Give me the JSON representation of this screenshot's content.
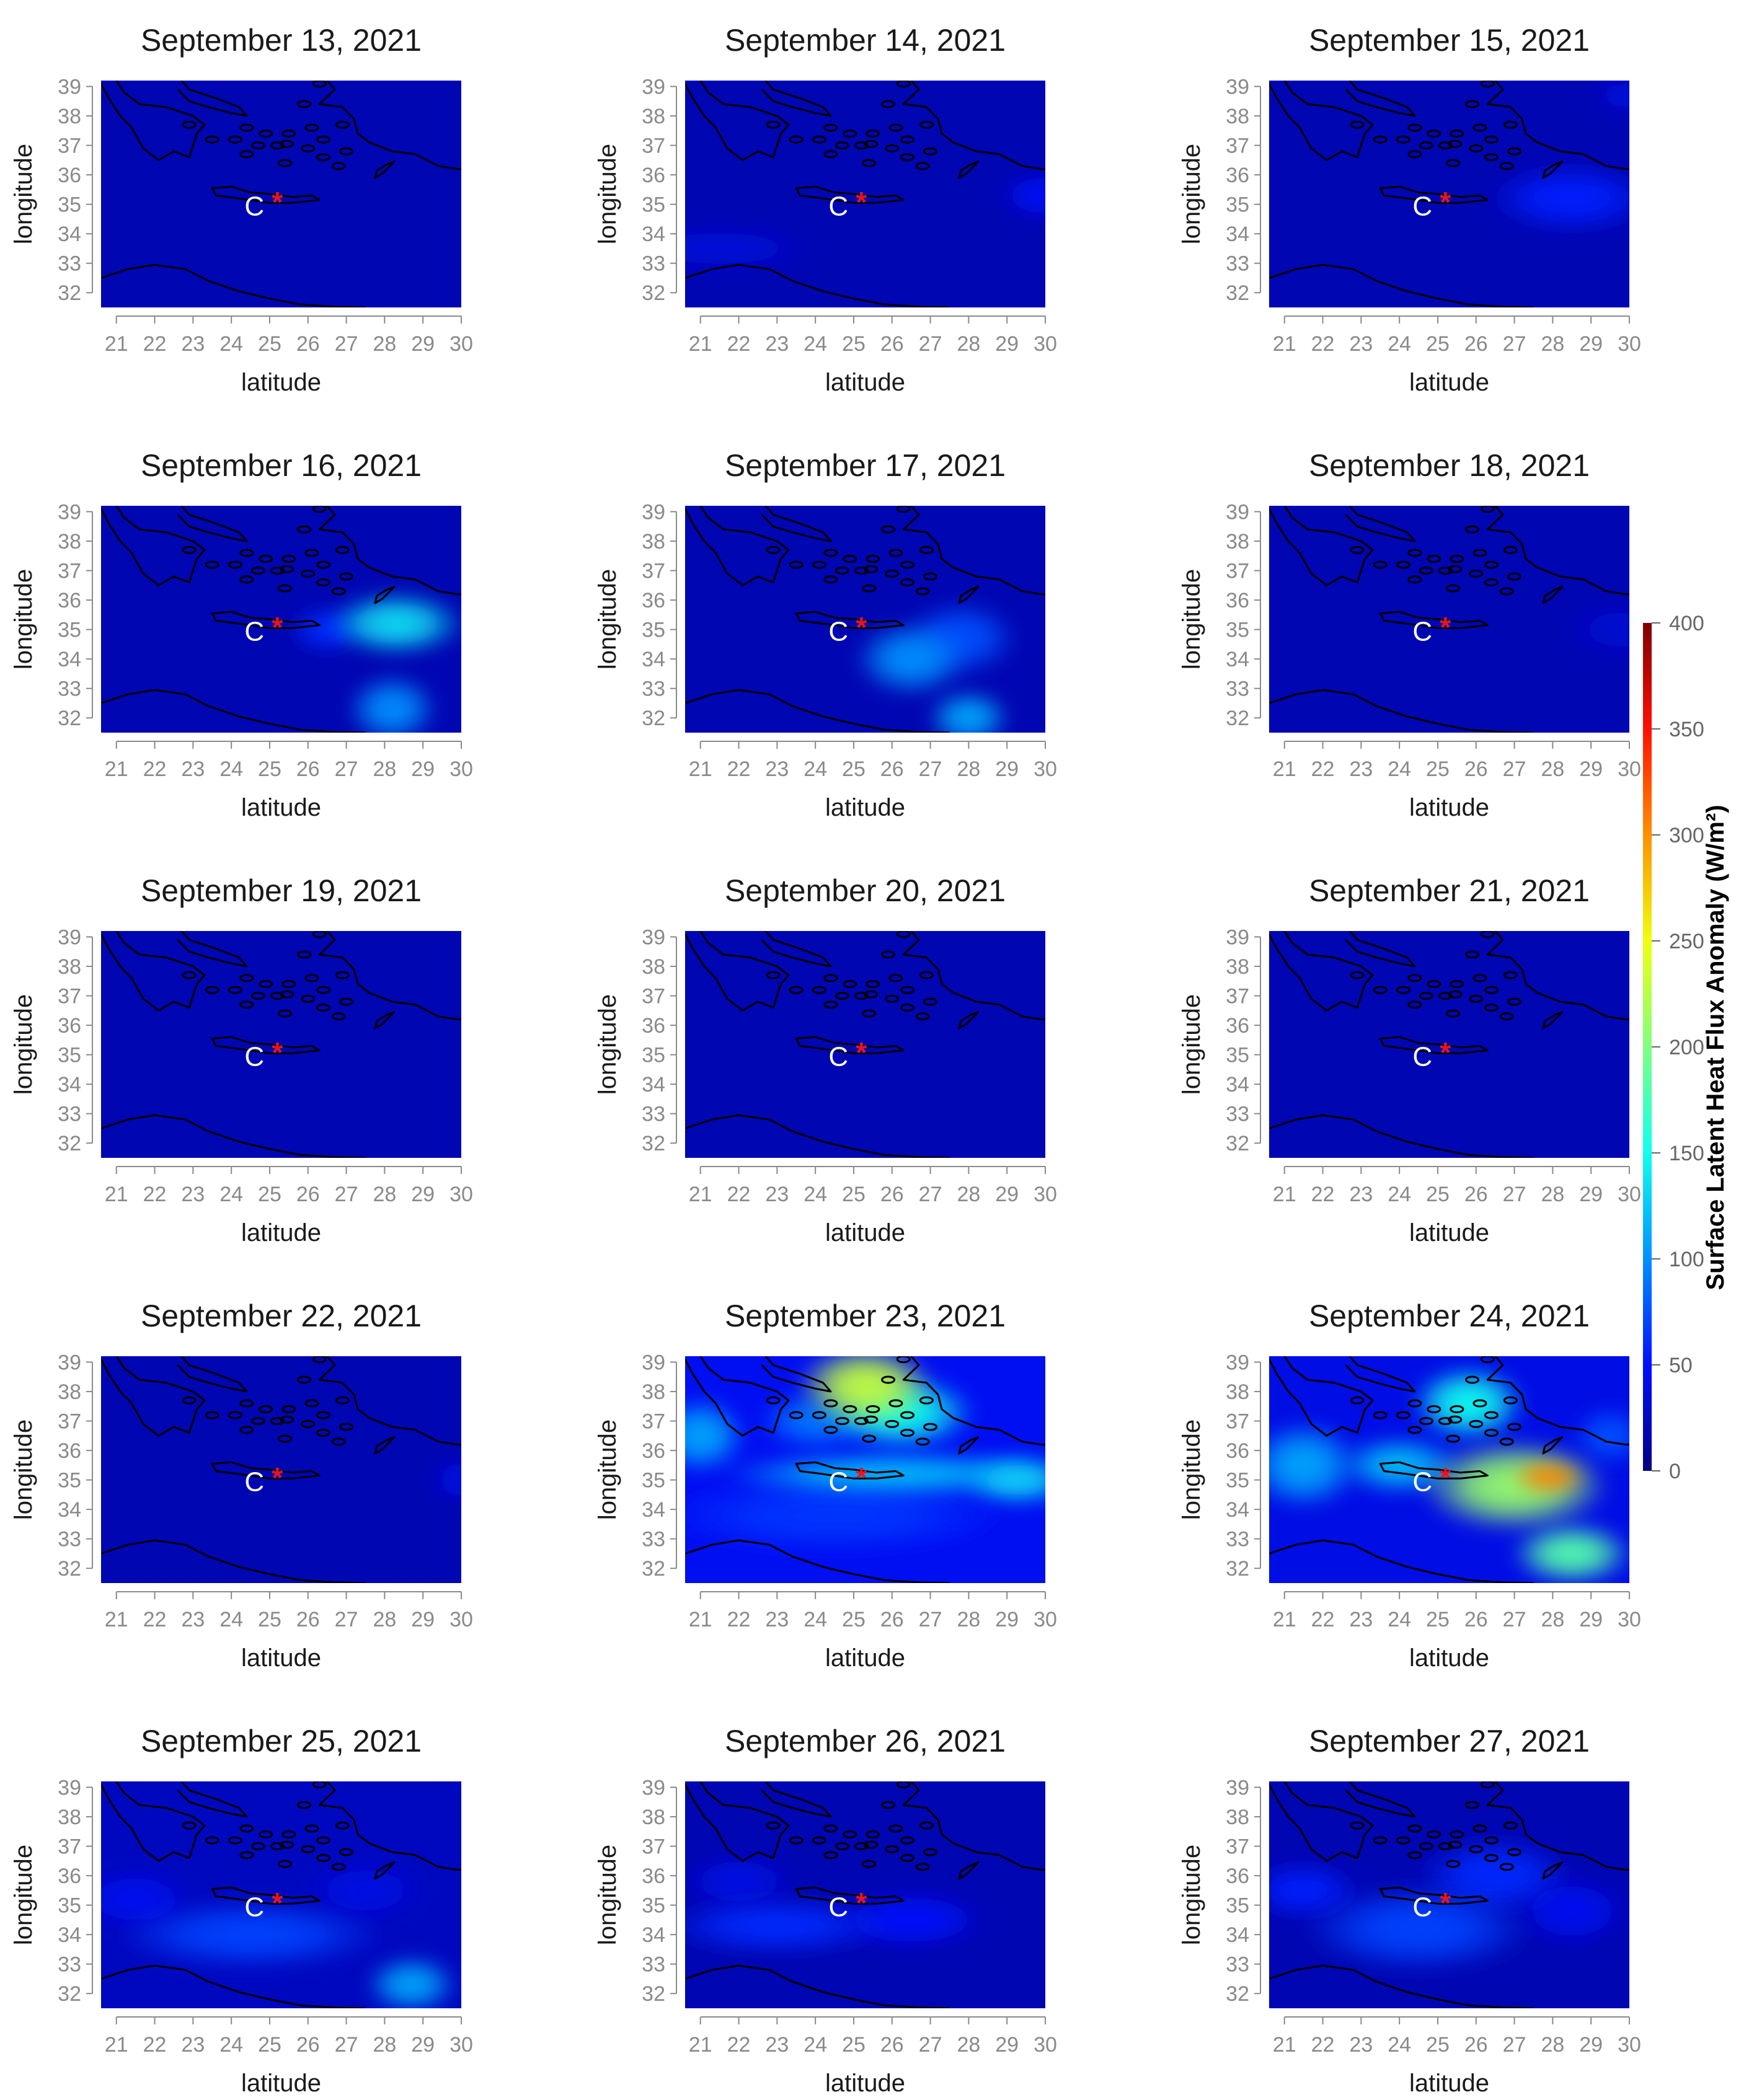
{
  "chart_data": {
    "type": "heatmap",
    "xlabel": "latitude",
    "ylabel": "longitude",
    "x_ticks": [
      21,
      22,
      23,
      24,
      25,
      26,
      27,
      28,
      29,
      30
    ],
    "y_ticks": [
      32,
      33,
      34,
      35,
      36,
      37,
      38,
      39
    ],
    "xlim": [
      20.6,
      30
    ],
    "ylim": [
      31.5,
      39.2
    ],
    "markers": {
      "epicenter": {
        "lon": 25.2,
        "lat": 35.2,
        "symbol": "*",
        "color": "#e8141e"
      },
      "label": {
        "lon": 24.6,
        "lat": 35.0,
        "text": "C",
        "color": "#ffffff"
      }
    },
    "colorbar": {
      "label": "Surface Latent Heat Flux Anomaly (W/m²)",
      "min": 0,
      "max": 400,
      "ticks": [
        0,
        50,
        100,
        150,
        200,
        250,
        300,
        350,
        400
      ],
      "stops": [
        {
          "value": 0,
          "color": "#00007f"
        },
        {
          "value": 50,
          "color": "#0010ff"
        },
        {
          "value": 100,
          "color": "#0090ff"
        },
        {
          "value": 150,
          "color": "#10ffef"
        },
        {
          "value": 200,
          "color": "#80ff80"
        },
        {
          "value": 250,
          "color": "#efff10"
        },
        {
          "value": 300,
          "color": "#ff9000"
        },
        {
          "value": 350,
          "color": "#ff1000"
        },
        {
          "value": 400,
          "color": "#7f0000"
        }
      ]
    },
    "panels": [
      {
        "title": "September 13, 2021",
        "background": 20,
        "hotspots": []
      },
      {
        "title": "September 14, 2021",
        "background": 20,
        "hotspots": [
          {
            "lon": 30.0,
            "lat": 35.3,
            "value": 50,
            "rx": 1.2,
            "ry": 0.8
          },
          {
            "lon": 21.5,
            "lat": 33.5,
            "value": 36,
            "rx": 2.5,
            "ry": 0.8
          }
        ]
      },
      {
        "title": "September 15, 2021",
        "background": 20,
        "hotspots": [
          {
            "lon": 28.5,
            "lat": 35.2,
            "value": 55,
            "rx": 2.2,
            "ry": 1.2
          },
          {
            "lon": 30.0,
            "lat": 38.7,
            "value": 40,
            "rx": 1.0,
            "ry": 0.6
          }
        ]
      },
      {
        "title": "September 16, 2021",
        "background": 20,
        "hotspots": [
          {
            "lon": 28.3,
            "lat": 35.2,
            "value": 135,
            "rx": 1.8,
            "ry": 1.1
          },
          {
            "lon": 28.2,
            "lat": 32.3,
            "value": 100,
            "rx": 1.2,
            "ry": 1.2
          },
          {
            "lon": 26.5,
            "lat": 35.0,
            "value": 60,
            "rx": 1.0,
            "ry": 0.8
          }
        ]
      },
      {
        "title": "September 17, 2021",
        "background": 20,
        "hotspots": [
          {
            "lon": 26.5,
            "lat": 34.0,
            "value": 100,
            "rx": 1.5,
            "ry": 1.3
          },
          {
            "lon": 27.8,
            "lat": 34.7,
            "value": 75,
            "rx": 1.5,
            "ry": 1.3
          },
          {
            "lon": 28.0,
            "lat": 32.0,
            "value": 110,
            "rx": 1.1,
            "ry": 1.0
          }
        ]
      },
      {
        "title": "September 18, 2021",
        "background": 20,
        "hotspots": [
          {
            "lon": 29.8,
            "lat": 35.0,
            "value": 32,
            "rx": 1.5,
            "ry": 1.0
          }
        ]
      },
      {
        "title": "September 19, 2021",
        "background": 20,
        "hotspots": []
      },
      {
        "title": "September 20, 2021",
        "background": 20,
        "hotspots": []
      },
      {
        "title": "September 21, 2021",
        "background": 20,
        "hotspots": []
      },
      {
        "title": "September 22, 2021",
        "background": 20,
        "hotspots": [
          {
            "lon": 30.0,
            "lat": 35.0,
            "value": 40,
            "rx": 0.8,
            "ry": 0.8
          }
        ]
      },
      {
        "title": "September 23, 2021",
        "background": 45,
        "hotspots": [
          {
            "lon": 25.3,
            "lat": 38.2,
            "value": 230,
            "rx": 1.8,
            "ry": 1.4
          },
          {
            "lon": 26.2,
            "lat": 37.3,
            "value": 150,
            "rx": 2.0,
            "ry": 1.3
          },
          {
            "lon": 24.0,
            "lat": 37.0,
            "value": 90,
            "rx": 1.5,
            "ry": 1.0
          },
          {
            "lon": 21.0,
            "lat": 36.5,
            "value": 110,
            "rx": 1.2,
            "ry": 1.3
          },
          {
            "lon": 26.0,
            "lat": 35.2,
            "value": 120,
            "rx": 4.5,
            "ry": 0.8
          },
          {
            "lon": 29.3,
            "lat": 35.0,
            "value": 130,
            "rx": 1.5,
            "ry": 0.9
          },
          {
            "lon": 24.5,
            "lat": 33.8,
            "value": 65,
            "rx": 4.5,
            "ry": 1.3
          }
        ]
      },
      {
        "title": "September 24, 2021",
        "background": 40,
        "hotspots": [
          {
            "lon": 27.9,
            "lat": 35.1,
            "value": 305,
            "rx": 1.0,
            "ry": 0.6
          },
          {
            "lon": 27.0,
            "lat": 34.8,
            "value": 210,
            "rx": 2.5,
            "ry": 1.6
          },
          {
            "lon": 25.8,
            "lat": 37.6,
            "value": 150,
            "rx": 1.5,
            "ry": 1.3
          },
          {
            "lon": 21.5,
            "lat": 35.5,
            "value": 110,
            "rx": 1.5,
            "ry": 1.5
          },
          {
            "lon": 24.0,
            "lat": 35.5,
            "value": 120,
            "rx": 1.6,
            "ry": 1.0
          },
          {
            "lon": 28.5,
            "lat": 32.5,
            "value": 180,
            "rx": 1.6,
            "ry": 1.1
          },
          {
            "lon": 29.5,
            "lat": 36.5,
            "value": 75,
            "rx": 1.0,
            "ry": 1.0
          }
        ]
      },
      {
        "title": "September 25, 2021",
        "background": 25,
        "hotspots": [
          {
            "lon": 24.5,
            "lat": 34.0,
            "value": 70,
            "rx": 3.5,
            "ry": 1.2
          },
          {
            "lon": 28.7,
            "lat": 32.3,
            "value": 110,
            "rx": 1.2,
            "ry": 1.0
          },
          {
            "lon": 21.5,
            "lat": 35.2,
            "value": 45,
            "rx": 1.5,
            "ry": 1.0
          },
          {
            "lon": 27.5,
            "lat": 35.5,
            "value": 40,
            "rx": 1.5,
            "ry": 1.0
          }
        ]
      },
      {
        "title": "September 26, 2021",
        "background": 20,
        "hotspots": [
          {
            "lon": 23.0,
            "lat": 34.3,
            "value": 60,
            "rx": 3.0,
            "ry": 1.0
          },
          {
            "lon": 26.5,
            "lat": 34.5,
            "value": 50,
            "rx": 2.0,
            "ry": 1.0
          },
          {
            "lon": 22.0,
            "lat": 35.8,
            "value": 40,
            "rx": 1.5,
            "ry": 1.0
          }
        ]
      },
      {
        "title": "September 27, 2021",
        "background": 20,
        "hotspots": [
          {
            "lon": 24.5,
            "lat": 34.2,
            "value": 70,
            "rx": 3.0,
            "ry": 1.5
          },
          {
            "lon": 26.5,
            "lat": 36.0,
            "value": 60,
            "rx": 2.0,
            "ry": 1.3
          },
          {
            "lon": 21.5,
            "lat": 35.5,
            "value": 55,
            "rx": 1.5,
            "ry": 1.0
          },
          {
            "lon": 28.5,
            "lat": 34.8,
            "value": 45,
            "rx": 1.5,
            "ry": 1.2
          }
        ]
      }
    ]
  }
}
